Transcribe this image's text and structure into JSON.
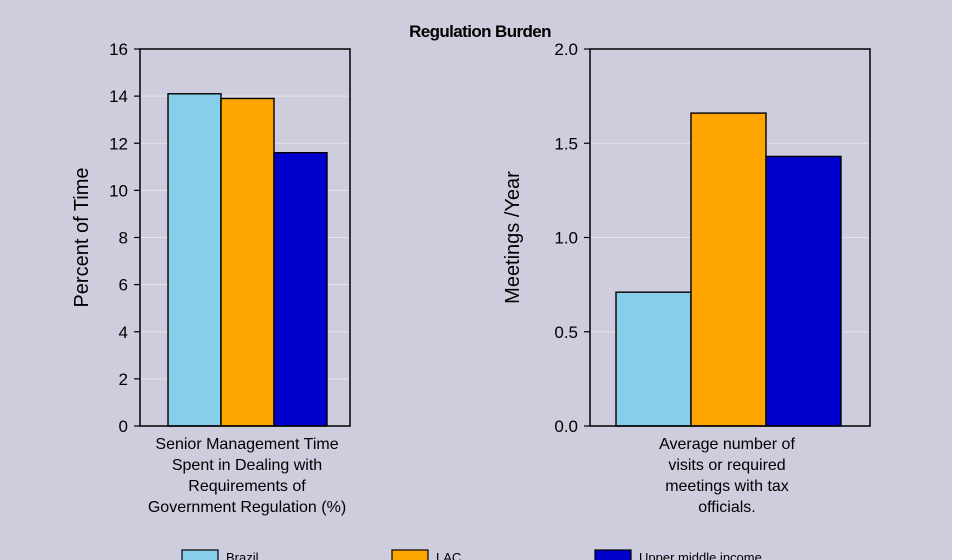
{
  "chart_data": {
    "title": "Regulation Burden",
    "legend": {
      "placement": "bottom",
      "entries": [
        {
          "name": "Brazil",
          "color": "#87ceeb"
        },
        {
          "name": "LAC",
          "color": "#ffa500"
        },
        {
          "name": "Upper middle income",
          "color": "#0000cd"
        }
      ]
    },
    "charts": [
      {
        "type": "bar",
        "ylabel": "Percent of Time",
        "ylim": [
          0,
          16
        ],
        "yticks": [
          "0",
          "2",
          "4",
          "6",
          "8",
          "10",
          "12",
          "14",
          "16"
        ],
        "category_lines": [
          "Senior Management Time",
          "Spent in Dealing with",
          "Requirements of",
          "Government Regulation (%)"
        ],
        "grid": true,
        "series": [
          {
            "name": "Brazil",
            "values": [
              14.1
            ]
          },
          {
            "name": "LAC",
            "values": [
              13.9
            ]
          },
          {
            "name": "Upper middle income",
            "values": [
              11.6
            ]
          }
        ]
      },
      {
        "type": "bar",
        "ylabel": "Meetings /Year",
        "ylim": [
          0,
          2
        ],
        "yticks": [
          "0.0",
          "0.5",
          "1.0",
          "1.5",
          "2.0"
        ],
        "category_lines": [
          "Average number of",
          "visits or required",
          "meetings with tax",
          "officials."
        ],
        "grid": true,
        "series": [
          {
            "name": "Brazil",
            "values": [
              0.71
            ]
          },
          {
            "name": "LAC",
            "values": [
              1.66
            ]
          },
          {
            "name": "Upper middle income",
            "values": [
              1.43
            ]
          }
        ]
      }
    ]
  }
}
